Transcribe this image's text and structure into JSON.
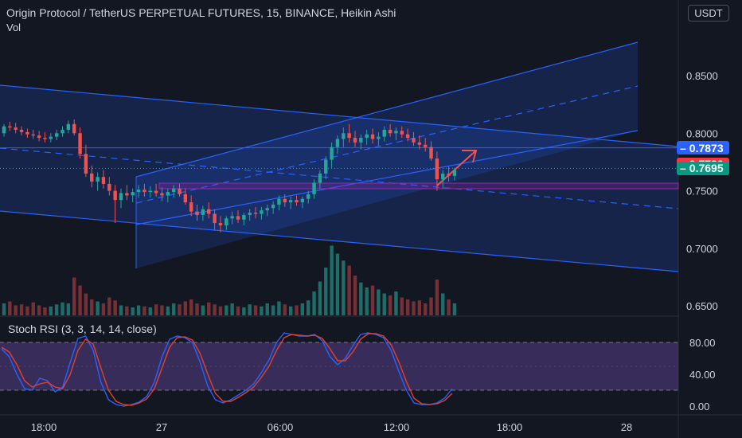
{
  "header": {
    "title": "Origin Protocol / TetherUS PERPETUAL FUTURES, 15, BINANCE, Heikin Ashi",
    "volume_label": "Vol",
    "currency_button": "USDT"
  },
  "indicator": {
    "label": "Stoch RSI (3, 3, 14, 14, close)"
  },
  "price_tags": [
    {
      "label": "0.7873",
      "price": 0.7873,
      "color": "#2962ff"
    },
    {
      "label": "0.7730",
      "price": 0.773,
      "color": "#f23645"
    },
    {
      "label": "0.7695",
      "price": 0.7695,
      "color": "#089981"
    }
  ],
  "colors": {
    "background": "#131722",
    "up": "#26a69a",
    "down": "#ef5350",
    "channel": "#2962ff",
    "channel_fill": "rgba(41,98,255,0.18)",
    "rsi_band": "rgba(126,87,194,0.35)",
    "k_line": "#2962ff",
    "d_line": "#e0412f",
    "zone": "#9c27b0"
  },
  "chart_data": [
    {
      "type": "candlestick",
      "title": "Origin Protocol / TetherUS PERPETUAL FUTURES, 15, BINANCE, Heikin Ashi",
      "ylim": [
        0.64,
        0.88
      ],
      "y_ticks": [
        "0.6500",
        "0.7000",
        "0.7500",
        "0.8000",
        "0.8500"
      ],
      "x_ticks": [
        "18:00",
        "27",
        "06:00",
        "12:00",
        "18:00",
        "28"
      ],
      "ohlc": [
        [
          0.8,
          0.808,
          0.797,
          0.806
        ],
        [
          0.806,
          0.81,
          0.802,
          0.805
        ],
        [
          0.805,
          0.809,
          0.8,
          0.803
        ],
        [
          0.803,
          0.806,
          0.798,
          0.801
        ],
        [
          0.801,
          0.804,
          0.796,
          0.799
        ],
        [
          0.799,
          0.803,
          0.795,
          0.798
        ],
        [
          0.798,
          0.802,
          0.793,
          0.796
        ],
        [
          0.796,
          0.801,
          0.792,
          0.795
        ],
        [
          0.795,
          0.8,
          0.792,
          0.797
        ],
        [
          0.797,
          0.803,
          0.794,
          0.8
        ],
        [
          0.8,
          0.806,
          0.797,
          0.803
        ],
        [
          0.803,
          0.811,
          0.8,
          0.808
        ],
        [
          0.808,
          0.812,
          0.798,
          0.8
        ],
        [
          0.8,
          0.805,
          0.778,
          0.782
        ],
        [
          0.782,
          0.79,
          0.762,
          0.765
        ],
        [
          0.765,
          0.772,
          0.753,
          0.758
        ],
        [
          0.758,
          0.766,
          0.75,
          0.762
        ],
        [
          0.762,
          0.768,
          0.752,
          0.756
        ],
        [
          0.756,
          0.762,
          0.746,
          0.75
        ],
        [
          0.75,
          0.755,
          0.722,
          0.742
        ],
        [
          0.742,
          0.752,
          0.735,
          0.748
        ],
        [
          0.748,
          0.755,
          0.742,
          0.746
        ],
        [
          0.746,
          0.752,
          0.74,
          0.749
        ],
        [
          0.749,
          0.755,
          0.744,
          0.751
        ],
        [
          0.751,
          0.756,
          0.745,
          0.749
        ],
        [
          0.749,
          0.754,
          0.744,
          0.75
        ],
        [
          0.75,
          0.756,
          0.745,
          0.748
        ],
        [
          0.748,
          0.753,
          0.741,
          0.746
        ],
        [
          0.746,
          0.752,
          0.74,
          0.749
        ],
        [
          0.749,
          0.755,
          0.744,
          0.752
        ],
        [
          0.752,
          0.756,
          0.745,
          0.747
        ],
        [
          0.747,
          0.752,
          0.738,
          0.74
        ],
        [
          0.74,
          0.746,
          0.728,
          0.732
        ],
        [
          0.732,
          0.738,
          0.724,
          0.729
        ],
        [
          0.729,
          0.737,
          0.724,
          0.734
        ],
        [
          0.734,
          0.74,
          0.726,
          0.73
        ],
        [
          0.73,
          0.734,
          0.716,
          0.722
        ],
        [
          0.722,
          0.728,
          0.714,
          0.72
        ],
        [
          0.72,
          0.728,
          0.716,
          0.726
        ],
        [
          0.726,
          0.732,
          0.721,
          0.728
        ],
        [
          0.728,
          0.733,
          0.722,
          0.725
        ],
        [
          0.725,
          0.731,
          0.72,
          0.729
        ],
        [
          0.729,
          0.734,
          0.724,
          0.731
        ],
        [
          0.731,
          0.736,
          0.726,
          0.73
        ],
        [
          0.73,
          0.736,
          0.725,
          0.733
        ],
        [
          0.733,
          0.738,
          0.728,
          0.735
        ],
        [
          0.735,
          0.741,
          0.73,
          0.738
        ],
        [
          0.738,
          0.746,
          0.733,
          0.743
        ],
        [
          0.743,
          0.747,
          0.736,
          0.74
        ],
        [
          0.74,
          0.745,
          0.734,
          0.742
        ],
        [
          0.742,
          0.746,
          0.737,
          0.74
        ],
        [
          0.74,
          0.745,
          0.735,
          0.743
        ],
        [
          0.743,
          0.75,
          0.739,
          0.747
        ],
        [
          0.747,
          0.76,
          0.743,
          0.757
        ],
        [
          0.757,
          0.768,
          0.752,
          0.765
        ],
        [
          0.765,
          0.78,
          0.76,
          0.777
        ],
        [
          0.777,
          0.792,
          0.77,
          0.788
        ],
        [
          0.788,
          0.798,
          0.782,
          0.795
        ],
        [
          0.795,
          0.805,
          0.788,
          0.8
        ],
        [
          0.8,
          0.808,
          0.792,
          0.796
        ],
        [
          0.796,
          0.802,
          0.788,
          0.792
        ],
        [
          0.792,
          0.799,
          0.786,
          0.796
        ],
        [
          0.796,
          0.803,
          0.79,
          0.799
        ],
        [
          0.799,
          0.804,
          0.791,
          0.795
        ],
        [
          0.795,
          0.801,
          0.789,
          0.797
        ],
        [
          0.797,
          0.806,
          0.793,
          0.803
        ],
        [
          0.803,
          0.808,
          0.797,
          0.8
        ],
        [
          0.8,
          0.805,
          0.794,
          0.802
        ],
        [
          0.802,
          0.806,
          0.796,
          0.799
        ],
        [
          0.799,
          0.804,
          0.793,
          0.796
        ],
        [
          0.796,
          0.801,
          0.789,
          0.792
        ],
        [
          0.792,
          0.798,
          0.786,
          0.79
        ],
        [
          0.79,
          0.796,
          0.784,
          0.788
        ],
        [
          0.788,
          0.793,
          0.776,
          0.778
        ],
        [
          0.778,
          0.784,
          0.75,
          0.76
        ],
        [
          0.76,
          0.768,
          0.752,
          0.765
        ],
        [
          0.765,
          0.771,
          0.758,
          0.763
        ],
        [
          0.763,
          0.77,
          0.759,
          0.768
        ]
      ]
    },
    {
      "type": "bar",
      "title": "Vol",
      "values": [
        12,
        14,
        10,
        11,
        9,
        13,
        10,
        8,
        9,
        11,
        13,
        12,
        38,
        30,
        22,
        16,
        14,
        12,
        18,
        15,
        10,
        9,
        8,
        10,
        9,
        8,
        11,
        10,
        9,
        12,
        11,
        14,
        16,
        12,
        10,
        13,
        11,
        9,
        10,
        12,
        9,
        8,
        11,
        10,
        9,
        12,
        10,
        14,
        11,
        9,
        10,
        12,
        15,
        24,
        34,
        48,
        70,
        62,
        55,
        50,
        40,
        33,
        28,
        30,
        26,
        22,
        20,
        24,
        18,
        16,
        14,
        15,
        12,
        18,
        36,
        22,
        16,
        12
      ],
      "directions": [
        1,
        0,
        0,
        0,
        0,
        0,
        0,
        0,
        1,
        1,
        1,
        1,
        0,
        0,
        0,
        0,
        1,
        0,
        0,
        0,
        1,
        0,
        1,
        1,
        0,
        1,
        0,
        0,
        1,
        1,
        0,
        0,
        0,
        0,
        1,
        0,
        0,
        0,
        1,
        1,
        0,
        1,
        1,
        0,
        1,
        1,
        1,
        1,
        0,
        1,
        0,
        1,
        1,
        1,
        1,
        1,
        1,
        1,
        1,
        0,
        0,
        1,
        1,
        0,
        1,
        1,
        0,
        1,
        0,
        0,
        0,
        0,
        0,
        0,
        0,
        1,
        0,
        1
      ]
    },
    {
      "type": "line",
      "title": "Stoch RSI (3, 3, 14, 14, close)",
      "ylim": [
        -5,
        95
      ],
      "y_ticks": [
        "0.00",
        "40.00",
        "80.00"
      ],
      "band": [
        20,
        80
      ],
      "series": [
        {
          "values": [
            72,
            62,
            40,
            22,
            20,
            35,
            32,
            18,
            24,
            55,
            85,
            88,
            70,
            30,
            8,
            2,
            0,
            2,
            5,
            12,
            30,
            62,
            84,
            88,
            86,
            80,
            55,
            25,
            8,
            4,
            8,
            14,
            20,
            28,
            42,
            58,
            80,
            92,
            90,
            88,
            88,
            90,
            82,
            62,
            52,
            60,
            76,
            90,
            92,
            90,
            86,
            70,
            44,
            20,
            4,
            2,
            2,
            4,
            10,
            22
          ]
        },
        {
          "values": [
            74,
            68,
            52,
            32,
            24,
            28,
            30,
            24,
            22,
            40,
            70,
            84,
            78,
            48,
            20,
            6,
            2,
            1,
            4,
            9,
            22,
            48,
            74,
            86,
            87,
            83,
            66,
            40,
            16,
            6,
            6,
            11,
            17,
            24,
            36,
            50,
            70,
            86,
            90,
            89,
            88,
            89,
            85,
            72,
            57,
            57,
            68,
            84,
            91,
            91,
            88,
            77,
            56,
            31,
            10,
            3,
            2,
            3,
            7,
            16
          ]
        }
      ]
    }
  ]
}
